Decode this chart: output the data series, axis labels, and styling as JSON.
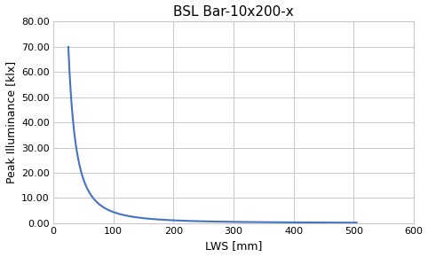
{
  "title": "BSL Bar-10x200-x",
  "xlabel": "LWS [mm]",
  "ylabel": "Peak Illuminance [klx]",
  "xlim": [
    0,
    600
  ],
  "ylim": [
    0,
    80
  ],
  "xticks": [
    0,
    100,
    200,
    300,
    400,
    500,
    600
  ],
  "yticks": [
    0,
    10,
    20,
    30,
    40,
    50,
    60,
    70,
    80
  ],
  "ytick_labels": [
    "0.00",
    "10.00",
    "20.00",
    "30.00",
    "40.00",
    "50.00",
    "60.00",
    "70.00",
    "80.00"
  ],
  "xtick_labels": [
    "0",
    "100",
    "200",
    "300",
    "400",
    "500",
    "600"
  ],
  "line_color": "#4472C4",
  "line_width": 1.5,
  "curve_start_x": 25,
  "curve_scale": 43750,
  "background_color": "#ffffff",
  "grid_color": "#c8c8c8",
  "title_fontsize": 11,
  "label_fontsize": 9,
  "tick_fontsize": 8,
  "font_family": "Arial"
}
